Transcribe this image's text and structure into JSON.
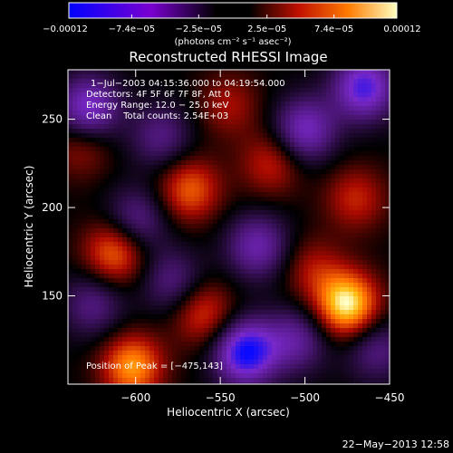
{
  "chart_data": {
    "type": "heatmap",
    "title": "Reconstructed RHESSI Image",
    "xlabel": "Heliocentric X (arcsec)",
    "ylabel": "Heliocentric Y (arcsec)",
    "xlim": [
      -640,
      -450
    ],
    "ylim": [
      100,
      278
    ],
    "x_ticks": [
      -600,
      -550,
      -500,
      -450
    ],
    "x_tick_labels": [
      "−600",
      "−550",
      "−500",
      "−450"
    ],
    "y_ticks": [
      150,
      200,
      250
    ],
    "y_tick_labels": [
      "150",
      "200",
      "250"
    ],
    "colorbar": {
      "label": "(photons cm⁻² s⁻¹ asec⁻²)",
      "range": [
        -0.00012,
        0.00012
      ],
      "tick_labels": [
        "−0.00012",
        "−7.4e−05",
        "−2.5e−05",
        "2.5e−05",
        "7.4e−05",
        "0.00012"
      ],
      "tick_values": [
        -0.00012,
        -7.4e-05,
        -2.5e-05,
        2.5e-05,
        7.4e-05,
        0.00012
      ]
    },
    "annotations": {
      "time_range": "1−Jul−2003 04:15:36.000 to 04:19:54.000",
      "detectors": "Detectors: 4F 5F 6F 7F 8F, Att 0",
      "energy": "Energy Range: 12.0 − 25.0 keV",
      "clean": "Clean    Total counts: 2.54E+03",
      "peak": "Position of Peak = [−475,143]"
    },
    "sources": [
      {
        "x": -475,
        "y": 145,
        "value": 0.00012
      },
      {
        "x": -602,
        "y": 110,
        "value": 9e-05
      },
      {
        "x": -612,
        "y": 175,
        "value": 8e-05
      },
      {
        "x": -568,
        "y": 210,
        "value": 7e-05
      },
      {
        "x": -520,
        "y": 225,
        "value": 5e-05
      },
      {
        "x": -560,
        "y": 140,
        "value": 6e-05
      },
      {
        "x": -545,
        "y": 258,
        "value": 4e-05
      },
      {
        "x": -470,
        "y": 205,
        "value": 5e-05
      },
      {
        "x": -495,
        "y": 165,
        "value": 4e-05
      },
      {
        "x": -632,
        "y": 235,
        "value": 4e-05
      },
      {
        "x": -535,
        "y": 118,
        "value": -0.00012
      },
      {
        "x": -465,
        "y": 268,
        "value": -0.0001
      },
      {
        "x": -628,
        "y": 256,
        "value": -9e-05
      },
      {
        "x": -500,
        "y": 244,
        "value": -8e-05
      },
      {
        "x": -600,
        "y": 192,
        "value": -6e-05
      },
      {
        "x": -528,
        "y": 178,
        "value": -7e-05
      },
      {
        "x": -578,
        "y": 158,
        "value": -5e-05
      },
      {
        "x": -585,
        "y": 240,
        "value": -5e-05
      },
      {
        "x": -505,
        "y": 125,
        "value": -6e-05
      },
      {
        "x": -458,
        "y": 120,
        "value": -5e-05
      },
      {
        "x": -625,
        "y": 145,
        "value": -5e-05
      }
    ]
  },
  "footer": {
    "date": "22−May−2013 12:58"
  }
}
